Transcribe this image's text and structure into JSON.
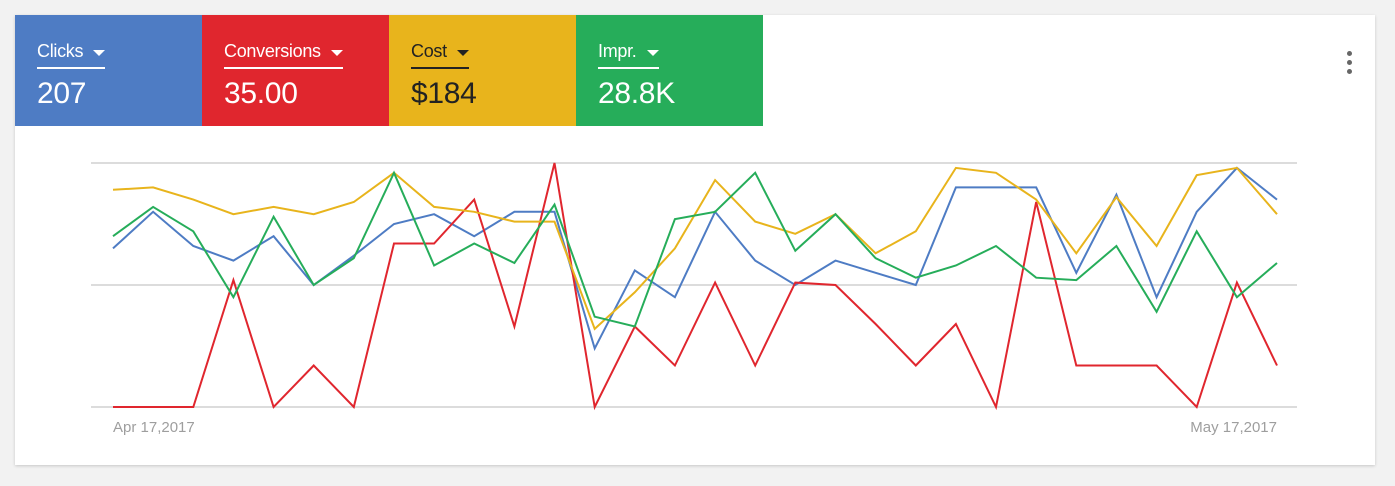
{
  "metrics": [
    {
      "label": "Clicks",
      "value": "207",
      "color": "#4e7cc4",
      "text_color": "#ffffff"
    },
    {
      "label": "Conversions",
      "value": "35.00",
      "color": "#e0262e",
      "text_color": "#ffffff"
    },
    {
      "label": "Cost",
      "value": "$184",
      "color": "#e8b41c",
      "text_color": "#222222"
    },
    {
      "label": "Impr.",
      "value": "28.8K",
      "color": "#26ad5a",
      "text_color": "#ffffff"
    }
  ],
  "menu": {
    "icon": "more-vert-icon"
  },
  "chart_data": {
    "type": "line",
    "x_start_label": "Apr 17,2017",
    "x_end_label": "May 17,2017",
    "grid": true,
    "ylim": [
      0,
      100
    ],
    "series": [
      {
        "name": "Clicks",
        "color": "#4e7cc4",
        "values": [
          65,
          80,
          66,
          60,
          70,
          50,
          62,
          75,
          79,
          70,
          80,
          80,
          24,
          56,
          45,
          80,
          60,
          50,
          60,
          55,
          50,
          90,
          90,
          90,
          55,
          87,
          45,
          80,
          98,
          85
        ]
      },
      {
        "name": "Conversions",
        "color": "#e0262e",
        "values": [
          0,
          0,
          0,
          52,
          0,
          17,
          0,
          67,
          67,
          85,
          33,
          100,
          0,
          33,
          17,
          51,
          17,
          51,
          50,
          34,
          17,
          34,
          0,
          84,
          17,
          17,
          17,
          0,
          51,
          17
        ]
      },
      {
        "name": "Cost",
        "color": "#e8b41c",
        "values": [
          89,
          90,
          85,
          79,
          82,
          79,
          84,
          96,
          82,
          80,
          76,
          76,
          32,
          47,
          65,
          93,
          76,
          71,
          79,
          63,
          72,
          98,
          96,
          85,
          63,
          86,
          66,
          95,
          98,
          79
        ]
      },
      {
        "name": "Impr.",
        "color": "#26ad5a",
        "values": [
          70,
          82,
          72,
          45,
          78,
          50,
          61,
          96,
          58,
          67,
          59,
          83,
          37,
          33,
          77,
          80,
          96,
          64,
          79,
          61,
          53,
          58,
          66,
          53,
          52,
          66,
          39,
          72,
          45,
          59
        ]
      }
    ]
  }
}
